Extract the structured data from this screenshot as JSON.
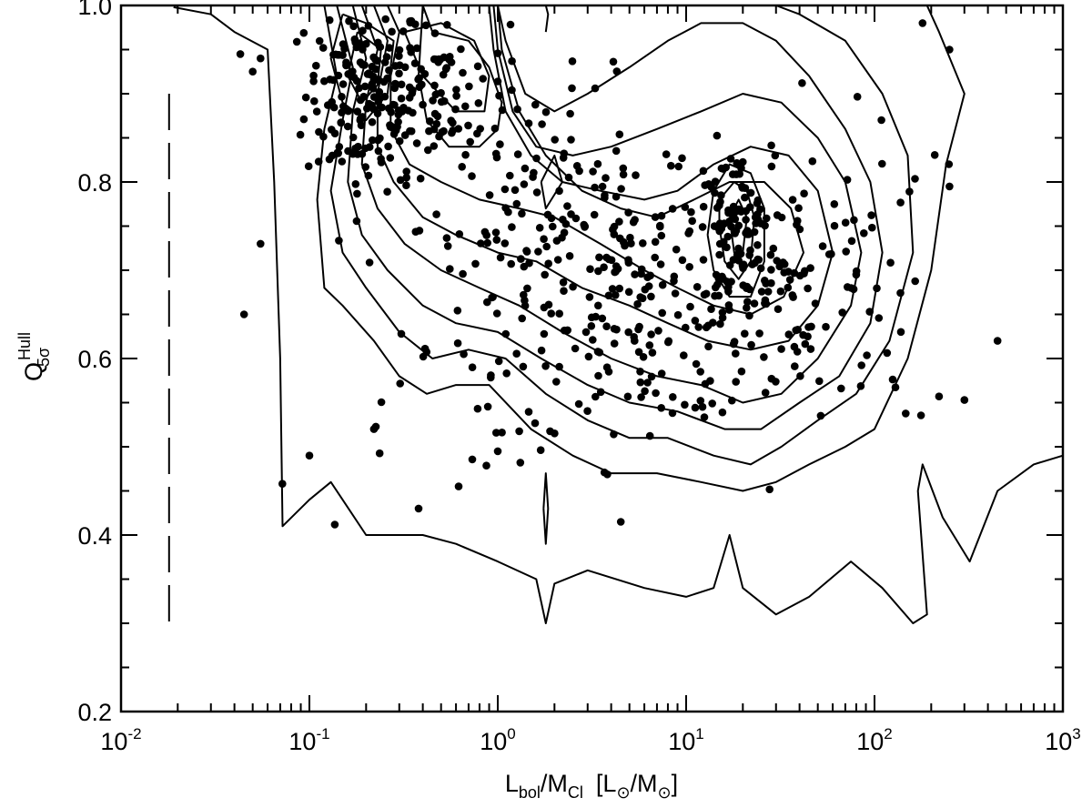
{
  "chart_data": {
    "type": "scatter",
    "title": "",
    "xlabel": {
      "main": "L",
      "main_sub": "bol",
      "sep": "/M",
      "sep_sub": "Cl",
      "unit_open": "[L",
      "unit_sun1": "⊙",
      "unit_mid": "/M",
      "unit_sun2": "⊙",
      "unit_close": "]"
    },
    "ylabel": {
      "main": "Q",
      "sup": "Hull",
      "sub": "5σ"
    },
    "x_scale": "log",
    "xlim": [
      0.01,
      1000
    ],
    "ylim": [
      0.2,
      1.0
    ],
    "x_ticks": [
      {
        "value": 0.01,
        "base": "10",
        "exp": "-2"
      },
      {
        "value": 0.1,
        "base": "10",
        "exp": "-1"
      },
      {
        "value": 1,
        "base": "10",
        "exp": "0"
      },
      {
        "value": 10,
        "base": "10",
        "exp": "1"
      },
      {
        "value": 100,
        "base": "10",
        "exp": "2"
      },
      {
        "value": 1000,
        "base": "10",
        "exp": "3"
      }
    ],
    "y_ticks": [
      {
        "value": 0.2,
        "label": "0.2"
      },
      {
        "value": 0.4,
        "label": "0.4"
      },
      {
        "value": 0.6,
        "label": "0.6"
      },
      {
        "value": 0.8,
        "label": "0.8"
      },
      {
        "value": 1.0,
        "label": "1.0"
      }
    ],
    "grid": false,
    "marker_color": "#000000",
    "contour_color": "#000000",
    "contours": [
      {
        "level": 1,
        "points": [
          [
            0.019,
            0.998
          ],
          [
            0.03,
            0.99
          ],
          [
            0.04,
            0.97
          ],
          [
            0.06,
            0.95
          ],
          [
            0.065,
            0.8
          ],
          [
            0.07,
            0.6
          ],
          [
            0.072,
            0.41
          ],
          [
            0.1,
            0.44
          ],
          [
            0.13,
            0.46
          ],
          [
            0.2,
            0.4
          ],
          [
            0.4,
            0.4
          ],
          [
            0.6,
            0.39
          ],
          [
            1.0,
            0.37
          ],
          [
            1.6,
            0.35
          ],
          [
            1.8,
            0.3
          ],
          [
            2.0,
            0.345
          ],
          [
            3,
            0.36
          ],
          [
            6,
            0.34
          ],
          [
            10,
            0.33
          ],
          [
            14,
            0.34
          ],
          [
            17,
            0.4
          ],
          [
            20,
            0.34
          ],
          [
            30,
            0.31
          ],
          [
            45,
            0.33
          ],
          [
            75,
            0.37
          ],
          [
            110,
            0.34
          ],
          [
            160,
            0.3
          ],
          [
            190,
            0.31
          ],
          [
            170,
            0.45
          ],
          [
            180,
            0.48
          ],
          [
            230,
            0.42
          ],
          [
            320,
            0.37
          ],
          [
            450,
            0.45
          ],
          [
            700,
            0.48
          ],
          [
            1000,
            0.49
          ]
        ]
      },
      {
        "level": 2,
        "points": [
          [
            0.12,
            1.0
          ],
          [
            0.14,
            0.92
          ],
          [
            0.12,
            0.86
          ],
          [
            0.11,
            0.78
          ],
          [
            0.12,
            0.68
          ],
          [
            0.15,
            0.66
          ],
          [
            0.22,
            0.62
          ],
          [
            0.3,
            0.58
          ],
          [
            0.42,
            0.56
          ],
          [
            0.6,
            0.57
          ],
          [
            0.9,
            0.57
          ],
          [
            1.5,
            0.52
          ],
          [
            2.5,
            0.49
          ],
          [
            4,
            0.47
          ],
          [
            7,
            0.47
          ],
          [
            12,
            0.46
          ],
          [
            20,
            0.45
          ],
          [
            30,
            0.46
          ],
          [
            45,
            0.48
          ],
          [
            70,
            0.5
          ],
          [
            100,
            0.52
          ],
          [
            150,
            0.6
          ],
          [
            200,
            0.7
          ],
          [
            240,
            0.82
          ],
          [
            300,
            0.9
          ],
          [
            220,
            0.97
          ],
          [
            190,
            1.0
          ]
        ]
      },
      {
        "level": 3,
        "points": [
          [
            0.14,
            1.0
          ],
          [
            0.17,
            0.93
          ],
          [
            0.15,
            0.87
          ],
          [
            0.13,
            0.79
          ],
          [
            0.15,
            0.72
          ],
          [
            0.2,
            0.68
          ],
          [
            0.3,
            0.63
          ],
          [
            0.45,
            0.6
          ],
          [
            0.7,
            0.61
          ],
          [
            1.1,
            0.6
          ],
          [
            1.8,
            0.56
          ],
          [
            3,
            0.53
          ],
          [
            5,
            0.51
          ],
          [
            8,
            0.51
          ],
          [
            14,
            0.49
          ],
          [
            22,
            0.48
          ],
          [
            32,
            0.5
          ],
          [
            50,
            0.53
          ],
          [
            80,
            0.56
          ],
          [
            120,
            0.62
          ],
          [
            160,
            0.72
          ],
          [
            150,
            0.83
          ],
          [
            110,
            0.9
          ],
          [
            70,
            0.96
          ],
          [
            40,
            0.99
          ],
          [
            30,
            1.0
          ]
        ]
      },
      {
        "level": 4,
        "points": [
          [
            0.17,
            1.0
          ],
          [
            0.2,
            0.94
          ],
          [
            0.17,
            0.88
          ],
          [
            0.16,
            0.8
          ],
          [
            0.19,
            0.74
          ],
          [
            0.26,
            0.7
          ],
          [
            0.4,
            0.66
          ],
          [
            0.6,
            0.64
          ],
          [
            1.0,
            0.63
          ],
          [
            1.7,
            0.6
          ],
          [
            3,
            0.57
          ],
          [
            5,
            0.55
          ],
          [
            9,
            0.54
          ],
          [
            16,
            0.52
          ],
          [
            25,
            0.52
          ],
          [
            40,
            0.55
          ],
          [
            65,
            0.58
          ],
          [
            95,
            0.64
          ],
          [
            110,
            0.72
          ],
          [
            95,
            0.8
          ],
          [
            70,
            0.86
          ],
          [
            45,
            0.92
          ],
          [
            30,
            0.96
          ],
          [
            20,
            0.98
          ],
          [
            12,
            0.98
          ],
          [
            8,
            0.96
          ],
          [
            5,
            0.93
          ],
          [
            3,
            0.9
          ],
          [
            2,
            0.88
          ],
          [
            1.4,
            0.9
          ],
          [
            1.1,
            0.96
          ],
          [
            1.0,
            1.0
          ]
        ]
      },
      {
        "level": 5,
        "points": [
          [
            0.19,
            1.0
          ],
          [
            0.23,
            0.95
          ],
          [
            0.2,
            0.89
          ],
          [
            0.19,
            0.82
          ],
          [
            0.23,
            0.77
          ],
          [
            0.32,
            0.73
          ],
          [
            0.5,
            0.7
          ],
          [
            0.8,
            0.68
          ],
          [
            1.3,
            0.66
          ],
          [
            2.2,
            0.63
          ],
          [
            4,
            0.6
          ],
          [
            7,
            0.58
          ],
          [
            12,
            0.57
          ],
          [
            20,
            0.55
          ],
          [
            32,
            0.56
          ],
          [
            50,
            0.6
          ],
          [
            75,
            0.66
          ],
          [
            85,
            0.72
          ],
          [
            70,
            0.8
          ],
          [
            50,
            0.85
          ],
          [
            32,
            0.89
          ],
          [
            20,
            0.9
          ],
          [
            12,
            0.88
          ],
          [
            7,
            0.86
          ],
          [
            4,
            0.84
          ],
          [
            2.5,
            0.83
          ],
          [
            1.6,
            0.84
          ],
          [
            1.2,
            0.88
          ],
          [
            1.0,
            0.95
          ],
          [
            0.95,
            1.0
          ]
        ]
      },
      {
        "level": 6,
        "points": [
          [
            0.22,
            1.0
          ],
          [
            0.26,
            0.96
          ],
          [
            0.23,
            0.9
          ],
          [
            0.23,
            0.84
          ],
          [
            0.28,
            0.8
          ],
          [
            0.4,
            0.76
          ],
          [
            0.6,
            0.74
          ],
          [
            1.0,
            0.72
          ],
          [
            1.6,
            0.71
          ],
          [
            2.8,
            0.68
          ],
          [
            5,
            0.66
          ],
          [
            8,
            0.64
          ],
          [
            13,
            0.62
          ],
          [
            22,
            0.61
          ],
          [
            35,
            0.62
          ],
          [
            50,
            0.66
          ],
          [
            60,
            0.72
          ],
          [
            50,
            0.79
          ],
          [
            35,
            0.83
          ],
          [
            22,
            0.84
          ],
          [
            14,
            0.82
          ],
          [
            9,
            0.79
          ],
          [
            6,
            0.78
          ],
          [
            3.5,
            0.79
          ],
          [
            2.2,
            0.8
          ],
          [
            1.5,
            0.83
          ],
          [
            1.1,
            0.88
          ],
          [
            0.95,
            0.95
          ],
          [
            0.9,
            1.0
          ]
        ]
      },
      {
        "level": 7,
        "points": [
          [
            0.26,
            1.0
          ],
          [
            0.3,
            0.97
          ],
          [
            0.27,
            0.92
          ],
          [
            0.27,
            0.86
          ],
          [
            0.34,
            0.82
          ],
          [
            0.5,
            0.8
          ],
          [
            0.8,
            0.78
          ],
          [
            1.3,
            0.77
          ],
          [
            2.0,
            0.76
          ],
          [
            3.5,
            0.73
          ],
          [
            6,
            0.7
          ],
          [
            9,
            0.68
          ],
          [
            14,
            0.66
          ],
          [
            22,
            0.65
          ],
          [
            33,
            0.67
          ],
          [
            42,
            0.72
          ],
          [
            36,
            0.77
          ],
          [
            26,
            0.8
          ],
          [
            17,
            0.8
          ],
          [
            11,
            0.78
          ],
          [
            7,
            0.76
          ],
          [
            4.5,
            0.77
          ],
          [
            2.8,
            0.79
          ],
          [
            1.8,
            0.83
          ],
          [
            1.3,
            0.88
          ],
          [
            1.05,
            0.95
          ],
          [
            1.0,
            1.0
          ]
        ]
      },
      {
        "level": 8,
        "points": [
          [
            0.4,
            1.0
          ],
          [
            0.45,
            0.97
          ],
          [
            0.7,
            0.96
          ],
          [
            0.9,
            0.93
          ],
          [
            1.05,
            0.89
          ],
          [
            1.0,
            0.86
          ],
          [
            0.8,
            0.84
          ],
          [
            0.55,
            0.84
          ],
          [
            0.42,
            0.87
          ],
          [
            0.38,
            0.92
          ],
          [
            0.4,
            1.0
          ]
        ]
      },
      {
        "level": 9,
        "points": [
          [
            0.32,
            0.97
          ],
          [
            0.4,
            0.92
          ],
          [
            0.6,
            0.88
          ],
          [
            0.85,
            0.88
          ],
          [
            0.9,
            0.92
          ],
          [
            0.75,
            0.96
          ],
          [
            0.5,
            0.98
          ],
          [
            0.32,
            0.97
          ]
        ]
      },
      {
        "level": 10,
        "points": [
          [
            0.15,
            0.99
          ],
          [
            0.2,
            0.98
          ],
          [
            0.28,
            0.96
          ],
          [
            0.26,
            0.9
          ],
          [
            0.2,
            0.87
          ],
          [
            0.15,
            0.89
          ],
          [
            0.13,
            0.94
          ],
          [
            0.15,
            0.99
          ]
        ]
      },
      {
        "level": 11,
        "points": [
          [
            0.18,
            0.97
          ],
          [
            0.24,
            0.95
          ],
          [
            0.23,
            0.91
          ],
          [
            0.19,
            0.89
          ],
          [
            0.16,
            0.92
          ],
          [
            0.18,
            0.97
          ]
        ]
      },
      {
        "level": 12,
        "points": [
          [
            13,
            0.74
          ],
          [
            14,
            0.7
          ],
          [
            17,
            0.67
          ],
          [
            22,
            0.67
          ],
          [
            26,
            0.71
          ],
          [
            26,
            0.77
          ],
          [
            22,
            0.81
          ],
          [
            17,
            0.82
          ],
          [
            14,
            0.79
          ],
          [
            13,
            0.74
          ]
        ]
      },
      {
        "level": 13,
        "points": [
          [
            15,
            0.75
          ],
          [
            16,
            0.71
          ],
          [
            19,
            0.69
          ],
          [
            22,
            0.71
          ],
          [
            23,
            0.76
          ],
          [
            21,
            0.79
          ],
          [
            18,
            0.8
          ],
          [
            15,
            0.78
          ],
          [
            15,
            0.75
          ]
        ]
      },
      {
        "level": 14,
        "points": [
          [
            17,
            0.76
          ],
          [
            18,
            0.72
          ],
          [
            20,
            0.72
          ],
          [
            21,
            0.76
          ],
          [
            19,
            0.78
          ],
          [
            17,
            0.76
          ]
        ]
      },
      {
        "level": 15,
        "points": [
          [
            1.7,
            0.8
          ],
          [
            1.8,
            0.77
          ],
          [
            2.2,
            0.8
          ],
          [
            2.0,
            0.83
          ],
          [
            1.7,
            0.8
          ]
        ]
      },
      {
        "level": 16,
        "points": [
          [
            1.75,
            0.43
          ],
          [
            1.8,
            0.39
          ],
          [
            1.85,
            0.43
          ],
          [
            1.8,
            0.47
          ],
          [
            1.75,
            0.43
          ]
        ]
      },
      {
        "level": 17,
        "points": [
          [
            1.8,
            0.97
          ],
          [
            1.85,
            0.99
          ],
          [
            1.8,
            1.0
          ]
        ]
      }
    ],
    "dashed_contours": [
      {
        "points": [
          [
            0.018,
            0.9
          ],
          [
            0.018,
            0.3
          ]
        ]
      }
    ]
  }
}
